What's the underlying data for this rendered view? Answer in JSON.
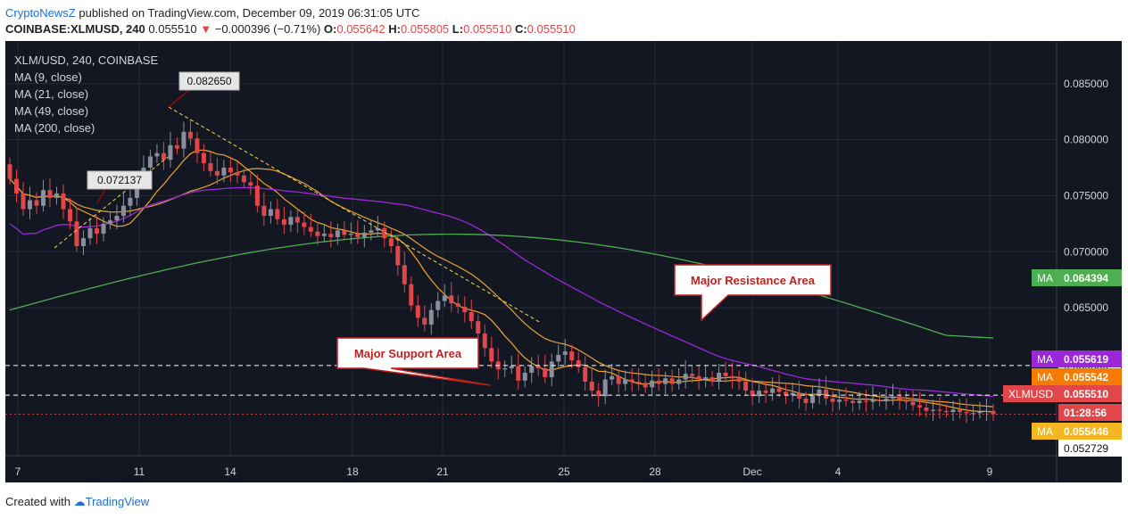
{
  "header": {
    "brand": "CryptoNewsZ",
    "published_text": " published on TradingView.com, December 09, 2019 06:31:05 UTC",
    "symbol_line": "COINBASE:XLMUSD, 240",
    "last": "0.055510",
    "change": "−0.000396 (−0.71%)",
    "open_label": "O:",
    "open": "0.055642",
    "high_label": "H:",
    "high": "0.055805",
    "low_label": "L:",
    "low": "0.055510",
    "close_label": "C:",
    "close": "0.055510"
  },
  "legend": {
    "title": "XLM/USD, 240, COINBASE",
    "items": [
      "MA (9, close)",
      "MA (21, close)",
      "MA (49, close)",
      "MA (200, close)"
    ]
  },
  "footer": {
    "created_with": "Created with",
    "tradingview": "TradingView"
  },
  "colors": {
    "background": "#131722",
    "up": "#8a8f9e",
    "down": "#e0464a",
    "ma9": "#f5a623",
    "ma21": "#e8a236",
    "ma49": "#9c27d9",
    "ma200": "#4caf50"
  },
  "chart_data": {
    "type": "candlestick",
    "ylim": [
      0.0518,
      0.0888
    ],
    "y_ticks": [
      "0.085000",
      "0.080000",
      "0.075000",
      "0.070000",
      "0.065000"
    ],
    "x_ticks": [
      "7",
      "11",
      "14",
      "18",
      "21",
      "25",
      "28",
      "Dec",
      "4",
      "9"
    ],
    "annotations": [
      {
        "text": "0.082650",
        "value": 0.08265
      },
      {
        "text": "0.072137",
        "value": 0.072137
      },
      {
        "text": "Major Resistance Area",
        "value": 0.05985
      },
      {
        "text": "Major Support Area",
        "value": 0.0572
      }
    ],
    "horizontal_lines": [
      {
        "value": 0.05985,
        "label": "0.059850"
      },
      {
        "value": 0.0572
      }
    ],
    "price_labels": [
      {
        "tag": "MA",
        "value": "0.064394",
        "color": "#4caf50"
      },
      {
        "tag": "MA",
        "value": "0.055619",
        "color": "#9c27d9"
      },
      {
        "tag": "MA",
        "value": "0.055542",
        "color": "#f57c00"
      },
      {
        "tag": "XLMUSD",
        "value": "0.055510",
        "color": "#e0464a"
      },
      {
        "tag": "",
        "value": "01:28:56",
        "color": "#e0464a"
      },
      {
        "tag": "MA",
        "value": "0.055446",
        "color": "#f5b623"
      },
      {
        "tag": "",
        "value": "0.052729",
        "color": "#ffffff"
      }
    ],
    "close": [
      0.0765,
      0.0752,
      0.0738,
      0.0746,
      0.0741,
      0.0755,
      0.0748,
      0.0752,
      0.0738,
      0.0727,
      0.0705,
      0.0712,
      0.0721,
      0.0716,
      0.0725,
      0.0728,
      0.0732,
      0.0741,
      0.0748,
      0.0762,
      0.0775,
      0.0785,
      0.0788,
      0.0782,
      0.0795,
      0.0792,
      0.0807,
      0.0801,
      0.0788,
      0.0779,
      0.0772,
      0.0768,
      0.0775,
      0.0771,
      0.0768,
      0.0762,
      0.0759,
      0.0741,
      0.0732,
      0.0738,
      0.0729,
      0.0724,
      0.0731,
      0.0726,
      0.0722,
      0.0718,
      0.0714,
      0.0716,
      0.0713,
      0.0719,
      0.0715,
      0.0716,
      0.0713,
      0.0717,
      0.0719,
      0.0721,
      0.0712,
      0.0705,
      0.0688,
      0.0671,
      0.0652,
      0.0641,
      0.0635,
      0.0648,
      0.0656,
      0.0661,
      0.0654,
      0.0651,
      0.0646,
      0.0638,
      0.0627,
      0.0614,
      0.0602,
      0.0595,
      0.0596,
      0.0598,
      0.0585,
      0.0592,
      0.0598,
      0.0596,
      0.0588,
      0.0602,
      0.0608,
      0.0611,
      0.0603,
      0.0597,
      0.0584,
      0.0576,
      0.0571,
      0.0586,
      0.0589,
      0.0582,
      0.0586,
      0.0584,
      0.0583,
      0.0579,
      0.0585,
      0.0582,
      0.0587,
      0.0582,
      0.0586,
      0.0591,
      0.0589,
      0.0586,
      0.0588,
      0.0585,
      0.0592,
      0.0589,
      0.0587,
      0.0584,
      0.0576,
      0.0571,
      0.0576,
      0.0574,
      0.0578,
      0.0575,
      0.0572,
      0.0574,
      0.0569,
      0.0565,
      0.0572,
      0.0577,
      0.0569,
      0.0566,
      0.0568,
      0.0567,
      0.0565,
      0.0567,
      0.0566,
      0.0568,
      0.0567,
      0.0569,
      0.0571,
      0.0568,
      0.0566,
      0.0563,
      0.0561,
      0.0558,
      0.0559,
      0.0558,
      0.0557,
      0.0559,
      0.0557,
      0.0556,
      0.0556,
      0.0557,
      0.0558,
      0.0555
    ]
  }
}
